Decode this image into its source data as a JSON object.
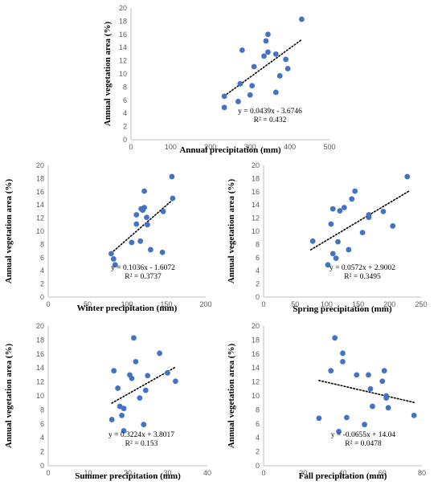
{
  "chart_data": [
    {
      "type": "scatter",
      "xlabel": "Annual precipitation (mm)",
      "ylabel": "Annual vegetation area (%)",
      "xlim": [
        0,
        500
      ],
      "ylim": [
        0,
        20
      ],
      "xticks": [
        "0",
        "100",
        "200",
        "300",
        "400",
        "500"
      ],
      "yticks": [
        "0",
        "2",
        "4",
        "6",
        "8",
        "10",
        "12",
        "14",
        "16",
        "18",
        "20"
      ],
      "equation": "y = 0.0439x - 3.6746",
      "r2": "R² = 0.432",
      "trendline": {
        "slope": 0.0439,
        "intercept": -3.6746,
        "x_range": [
          235,
          430
        ]
      },
      "marker_color": "#4472C4",
      "x": [
        430,
        345,
        280,
        340,
        345,
        365,
        335,
        390,
        395,
        310,
        375,
        235,
        365,
        275,
        305,
        300,
        270,
        235
      ],
      "y": [
        18.3,
        16.0,
        13.6,
        15.0,
        13.3,
        13.0,
        12.7,
        12.2,
        10.8,
        11.1,
        9.7,
        6.6,
        7.2,
        8.5,
        8.2,
        6.8,
        5.8,
        4.9
      ]
    },
    {
      "type": "scatter",
      "xlabel": "Winter precipitation (mm)",
      "ylabel": "Annual vegetation area (%)",
      "xlim": [
        0,
        200
      ],
      "ylim": [
        0,
        20
      ],
      "xticks": [
        "0",
        "50",
        "100",
        "150",
        "200"
      ],
      "yticks": [
        "0",
        "2",
        "4",
        "6",
        "8",
        "10",
        "12",
        "14",
        "16",
        "18",
        "20"
      ],
      "equation": "y = 0.1036x - 1.6072",
      "r2": "R² = 0.3737",
      "trendline": {
        "slope": 0.1036,
        "intercept": -1.6072,
        "x_range": [
          80,
          158
        ]
      },
      "marker_color": "#4472C4",
      "x": [
        157,
        122,
        158,
        118,
        122,
        120,
        112,
        125,
        126,
        112,
        106,
        80,
        130,
        117,
        146,
        145,
        83,
        85
      ],
      "y": [
        18.3,
        16.1,
        15.0,
        13.4,
        13.6,
        13.2,
        12.5,
        12.1,
        11.0,
        11.1,
        8.3,
        6.6,
        7.2,
        8.5,
        13.0,
        6.8,
        5.8,
        4.9
      ]
    },
    {
      "type": "scatter",
      "xlabel": "Spring precipitation (mm)",
      "ylabel": "Annual vegetation area (%)",
      "xlim": [
        0,
        250
      ],
      "ylim": [
        0,
        20
      ],
      "xticks": [
        "0",
        "50",
        "100",
        "150",
        "200",
        "250"
      ],
      "yticks": [
        "0",
        "2",
        "4",
        "6",
        "8",
        "10",
        "12",
        "14",
        "16",
        "18",
        "20"
      ],
      "equation": "y = 0.0572x + 2.9002",
      "r2": "R² = 0.3495",
      "trendline": {
        "slope": 0.0572,
        "intercept": 2.9002,
        "x_range": [
          75,
          230
        ]
      },
      "marker_color": "#4472C4",
      "x": [
        228,
        145,
        140,
        110,
        128,
        121,
        167,
        167,
        190,
        107,
        205,
        78,
        135,
        118,
        157,
        110,
        115,
        102
      ],
      "y": [
        18.3,
        16.1,
        14.9,
        13.4,
        13.6,
        13.1,
        12.5,
        12.1,
        13.0,
        11.1,
        10.8,
        8.5,
        7.2,
        8.4,
        9.8,
        6.6,
        5.9,
        4.9
      ]
    },
    {
      "type": "scatter",
      "xlabel": "Summer precipitation (mm)",
      "ylabel": "Annual vegetation area (%)",
      "xlim": [
        0,
        40
      ],
      "ylim": [
        0,
        20
      ],
      "xticks": [
        "0",
        "10",
        "20",
        "30",
        "40"
      ],
      "yticks": [
        "0",
        "2",
        "4",
        "6",
        "8",
        "10",
        "12",
        "14",
        "16",
        "18",
        "20"
      ],
      "equation": "y = 0.3224x + 3.8017",
      "r2": "R² = 0.153",
      "trendline": {
        "slope": 0.3224,
        "intercept": 3.8017,
        "x_range": [
          16,
          32
        ]
      },
      "marker_color": "#4472C4",
      "x": [
        21.5,
        28,
        16.5,
        22,
        20.5,
        21,
        30,
        32,
        17.5,
        23,
        24.5,
        16,
        25,
        19,
        18,
        19,
        24,
        18.5
      ],
      "y": [
        18.3,
        16.1,
        13.6,
        14.9,
        13.0,
        12.5,
        13.3,
        12.1,
        11.1,
        9.7,
        10.8,
        6.6,
        12.9,
        8.2,
        8.5,
        5.0,
        5.9,
        7.2
      ]
    },
    {
      "type": "scatter",
      "xlabel": "Fall precipitation (mm)",
      "ylabel": "Annual vegetation area (%)",
      "xlim": [
        0,
        80
      ],
      "ylim": [
        0,
        20
      ],
      "xticks": [
        "0",
        "20",
        "40",
        "60",
        "80"
      ],
      "yticks": [
        "0",
        "2",
        "4",
        "6",
        "8",
        "10",
        "12",
        "14",
        "16",
        "18",
        "20"
      ],
      "equation": "y = -0.0655x + 14.04",
      "r2": "R² = 0.0478",
      "trendline": {
        "slope": -0.0655,
        "intercept": 14.04,
        "x_range": [
          28,
          76
        ]
      },
      "marker_color": "#4472C4",
      "x": [
        36,
        40,
        40,
        34,
        61,
        53,
        47,
        60,
        54,
        62,
        62,
        28,
        76,
        55,
        42,
        63,
        51,
        38
      ],
      "y": [
        18.3,
        16.1,
        14.9,
        13.6,
        13.6,
        13.0,
        13.0,
        12.1,
        11.0,
        10.0,
        9.7,
        6.8,
        7.2,
        8.5,
        6.9,
        8.3,
        5.9,
        4.9
      ]
    }
  ]
}
